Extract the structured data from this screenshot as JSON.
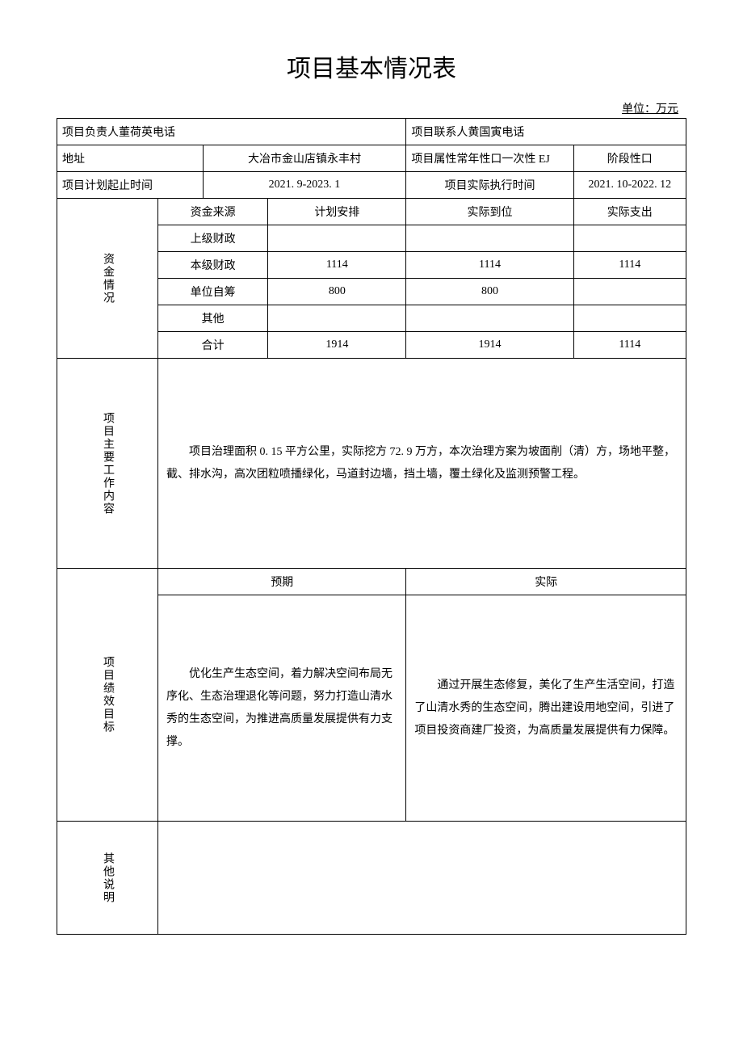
{
  "title": "项目基本情况表",
  "unit": "单位：万元",
  "row1": {
    "leader_label": "项目负责人董荷英电话",
    "contact_label": "项目联系人黄国寅电话"
  },
  "row2": {
    "addr_label": "地址",
    "addr_value": "大冶市金山店镇永丰村",
    "attr_label": "项目属性常年性口一次性 EJ",
    "stage_label": "阶段性口"
  },
  "row3": {
    "plan_time_label": "项目计划起止时间",
    "plan_time_value": "2021. 9-2023. 1",
    "actual_time_label": "项目实际执行时间",
    "actual_time_value": "2021. 10-2022. 12"
  },
  "funding": {
    "section_label": "资金情况",
    "headers": {
      "source": "资金来源",
      "plan": "计划安排",
      "arrived": "实际到位",
      "spent": "实际支出"
    },
    "rows": [
      {
        "source": "上级财政",
        "plan": "",
        "arrived": "",
        "spent": ""
      },
      {
        "source": "本级财政",
        "plan": "1114",
        "arrived": "1114",
        "spent": "1114"
      },
      {
        "source": "单位自筹",
        "plan": "800",
        "arrived": "800",
        "spent": ""
      },
      {
        "source": "其他",
        "plan": "",
        "arrived": "",
        "spent": ""
      },
      {
        "source": "合计",
        "plan": "1914",
        "arrived": "1914",
        "spent": "1114"
      }
    ]
  },
  "work": {
    "label": "项目主要工作内容",
    "body": "项目治理面积 0. 15 平方公里，实际挖方 72. 9 万方，本次治理方案为坡面削（清）方，场地平整，截、排水沟，高次团粒喷播绿化，马道封边墙，挡土墙，覆土绿化及监测预警工程。"
  },
  "goals": {
    "label": "项目绩效目标",
    "header_expected": "预期",
    "header_actual": "实际",
    "expected": "优化生产生态空间，着力解决空间布局无序化、生态治理退化等问题，努力打造山清水秀的生态空间，为推进高质量发展提供有力支撑。",
    "actual": "通过开展生态修复，美化了生产生活空间，打造了山清水秀的生态空间，腾出建设用地空间，引进了项目投资商建厂投资，为高质量发展提供有力保障。"
  },
  "other": {
    "label": "其他说明",
    "body": ""
  }
}
